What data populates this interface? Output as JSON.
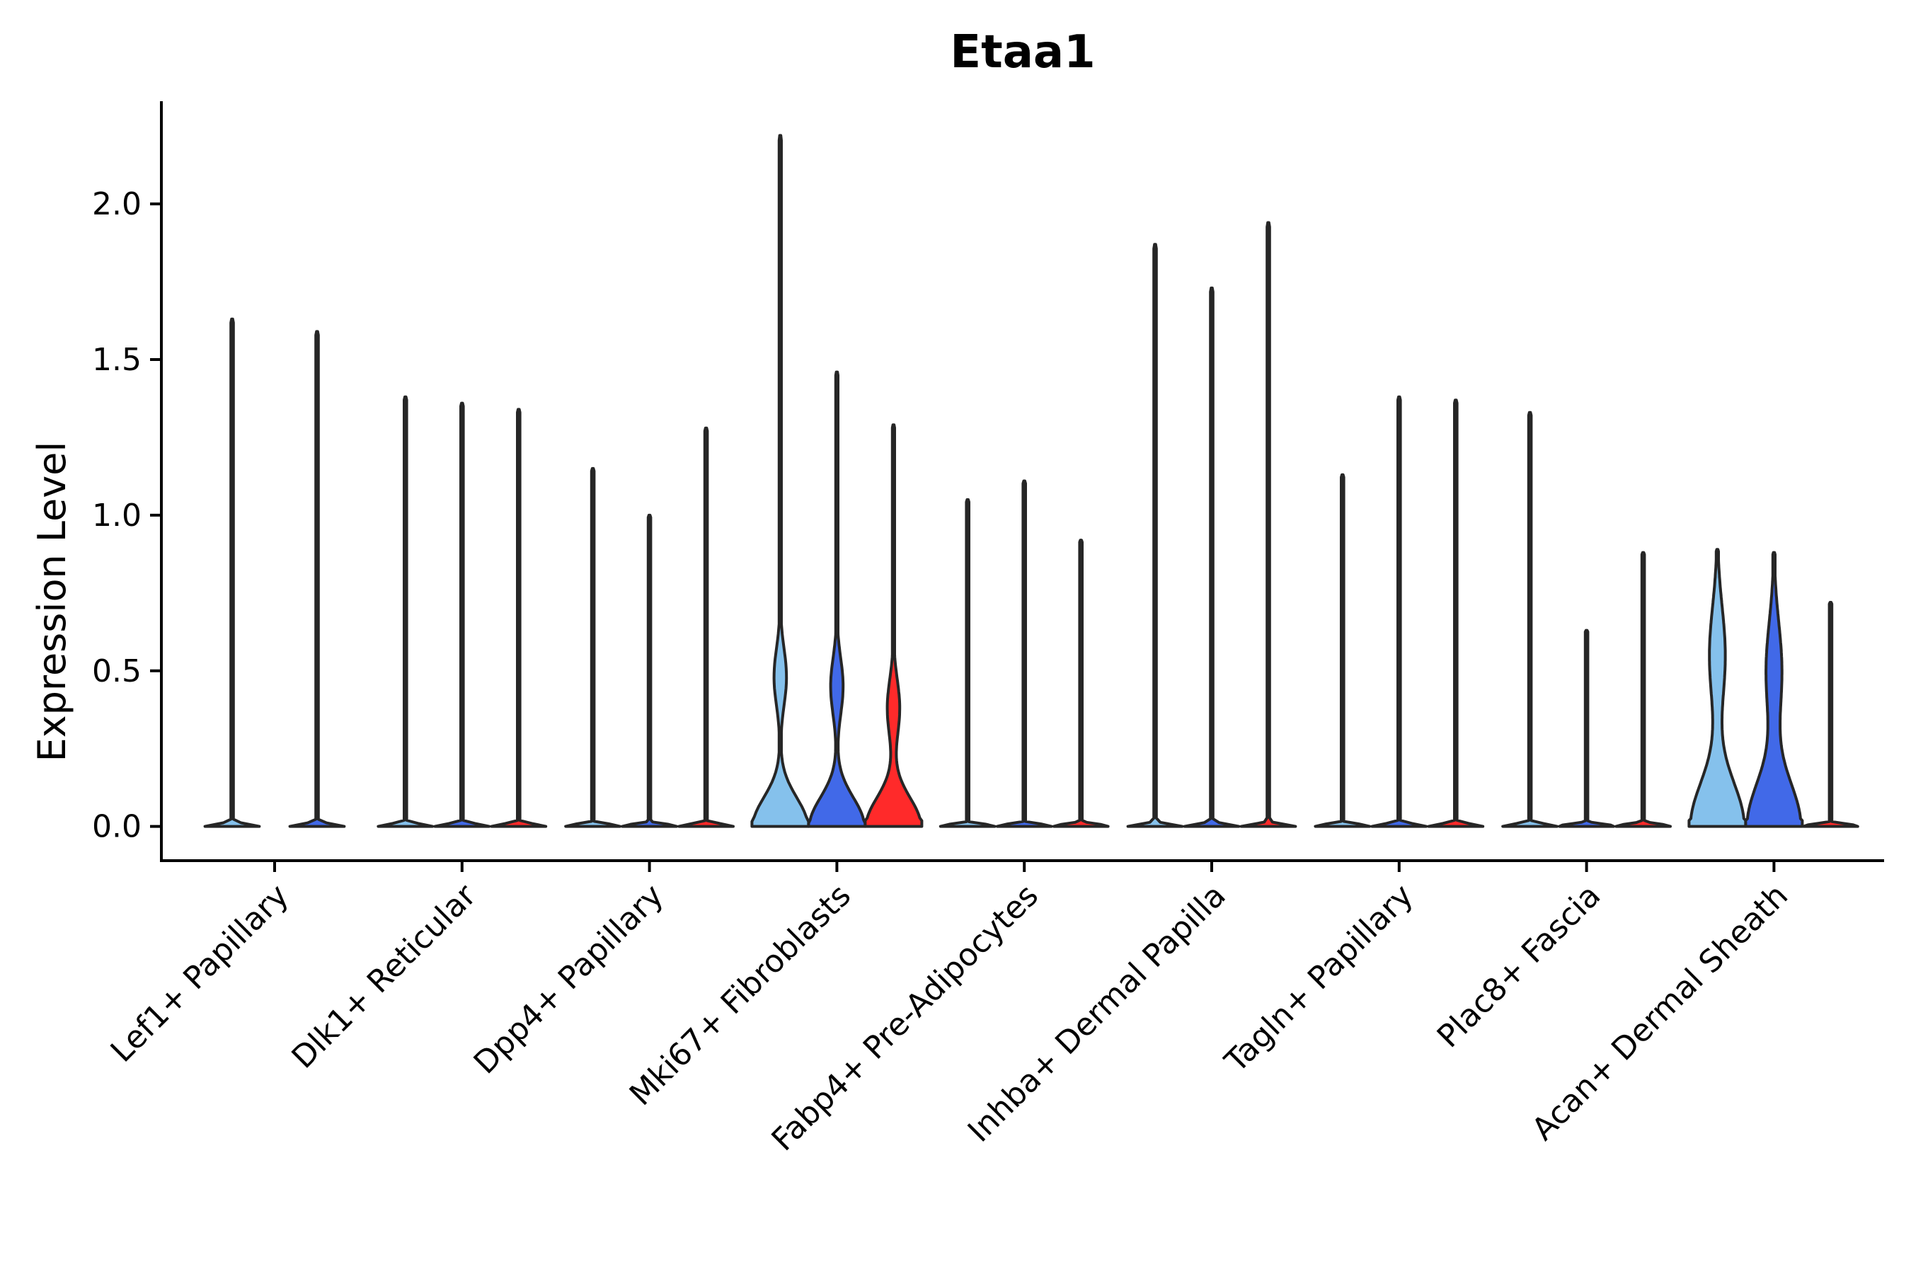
{
  "chart_data": {
    "type": "violin",
    "title": "Etaa1",
    "xlabel": "",
    "ylabel": "Expression Level",
    "ylim": [
      -0.11,
      2.33
    ],
    "yticks": [
      "0.0",
      "0.5",
      "1.0",
      "1.5",
      "2.0"
    ],
    "ytick_values": [
      0,
      0.5,
      1.0,
      1.5,
      2.0
    ],
    "grid": false,
    "categories": [
      "Lef1+ Papillary",
      "Dlk1+ Reticular",
      "Dpp4+ Papillary",
      "Mki67+ Fibroblasts",
      "Fabp4+ Pre-Adipocytes",
      "Inhba+ Dermal Papilla",
      "Tagln+ Papillary",
      "Plac8+ Fascia",
      "Acan+ Dermal Sheath"
    ],
    "series_colors": [
      "#85c1ec",
      "#4169e8",
      "#ff2a2a"
    ],
    "groups": [
      {
        "category": "Lef1+ Papillary",
        "violins": [
          {
            "series": 0,
            "max": 1.63,
            "mode": "flat"
          },
          {
            "series": 1,
            "max": 1.59,
            "mode": "flat"
          }
        ]
      },
      {
        "category": "Dlk1+ Reticular",
        "violins": [
          {
            "series": 0,
            "max": 1.38,
            "mode": "flat"
          },
          {
            "series": 1,
            "max": 1.36,
            "mode": "flat"
          },
          {
            "series": 2,
            "max": 1.34,
            "mode": "flat"
          }
        ]
      },
      {
        "category": "Dpp4+ Papillary",
        "violins": [
          {
            "series": 0,
            "max": 1.15,
            "mode": "flat"
          },
          {
            "series": 1,
            "max": 1.0,
            "mode": "flat"
          },
          {
            "series": 2,
            "max": 1.28,
            "mode": "flat"
          }
        ]
      },
      {
        "category": "Mki67+ Fibroblasts",
        "violins": [
          {
            "series": 0,
            "max": 2.22,
            "mode": "bulb",
            "upper_peak": 0.48
          },
          {
            "series": 1,
            "max": 1.46,
            "mode": "bulb",
            "upper_peak": 0.45
          },
          {
            "series": 2,
            "max": 1.29,
            "mode": "bulb",
            "upper_peak": 0.38
          }
        ]
      },
      {
        "category": "Fabp4+ Pre-Adipocytes",
        "violins": [
          {
            "series": 0,
            "max": 1.05,
            "mode": "flat"
          },
          {
            "series": 1,
            "max": 1.11,
            "mode": "flat"
          },
          {
            "series": 2,
            "max": 0.92,
            "mode": "flat"
          }
        ]
      },
      {
        "category": "Inhba+ Dermal Papilla",
        "violins": [
          {
            "series": 0,
            "max": 1.87,
            "mode": "flat"
          },
          {
            "series": 1,
            "max": 1.73,
            "mode": "flat"
          },
          {
            "series": 2,
            "max": 1.94,
            "mode": "flat"
          }
        ]
      },
      {
        "category": "Tagln+ Papillary",
        "violins": [
          {
            "series": 0,
            "max": 1.13,
            "mode": "flat"
          },
          {
            "series": 1,
            "max": 1.38,
            "mode": "flat"
          },
          {
            "series": 2,
            "max": 1.37,
            "mode": "flat"
          }
        ]
      },
      {
        "category": "Plac8+ Fascia",
        "violins": [
          {
            "series": 0,
            "max": 1.33,
            "mode": "flat"
          },
          {
            "series": 1,
            "max": 0.63,
            "mode": "flat"
          },
          {
            "series": 2,
            "max": 0.88,
            "mode": "flat"
          }
        ]
      },
      {
        "category": "Acan+ Dermal Sheath",
        "violins": [
          {
            "series": 0,
            "max": 0.89,
            "mode": "wide",
            "upper_peak": 0.55
          },
          {
            "series": 1,
            "max": 0.88,
            "mode": "wide",
            "upper_peak": 0.5
          },
          {
            "series": 2,
            "max": 0.72,
            "mode": "flat"
          }
        ]
      }
    ]
  }
}
